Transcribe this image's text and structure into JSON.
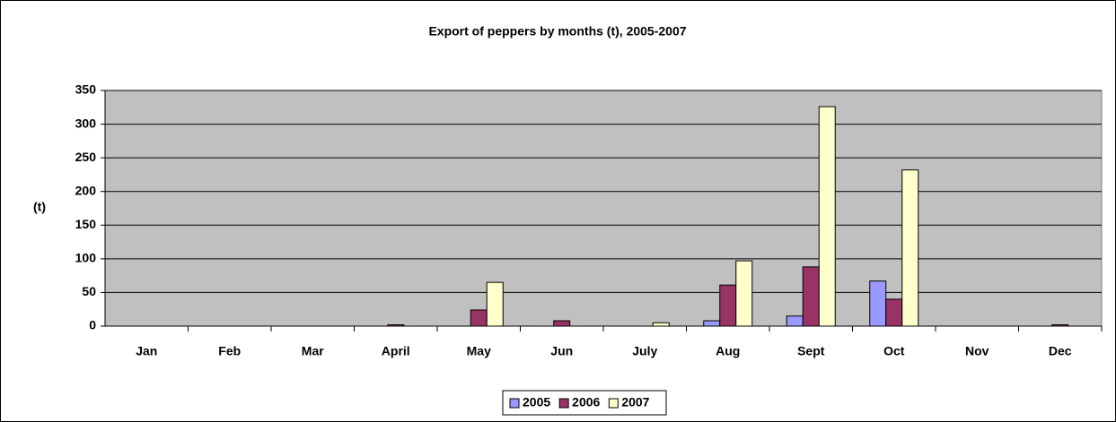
{
  "chart_data": {
    "type": "bar",
    "title": "Export of peppers by months (t), 2005-2007",
    "y_label": "(t)",
    "categories": [
      "Jan",
      "Feb",
      "Mar",
      "April",
      "May",
      "Jun",
      "July",
      "Aug",
      "Sept",
      "Oct",
      "Nov",
      "Dec"
    ],
    "series": [
      {
        "name": "2005",
        "color": "#9999ff",
        "values": [
          0,
          0,
          0,
          0,
          0,
          0,
          0,
          8,
          15,
          67,
          0,
          0
        ]
      },
      {
        "name": "2006",
        "color": "#993366",
        "values": [
          0,
          0,
          0,
          2,
          24,
          8,
          0,
          61,
          88,
          40,
          0,
          2
        ]
      },
      {
        "name": "2007",
        "color": "#ffffcc",
        "values": [
          0,
          0,
          0,
          0,
          65,
          0,
          5,
          97,
          326,
          232,
          0,
          0
        ]
      }
    ],
    "ylim": [
      0,
      350
    ],
    "yticks": [
      0,
      50,
      100,
      150,
      200,
      250,
      300,
      350
    ],
    "grid": true,
    "legend": "bottom",
    "plot_background": "#c0c0c0"
  }
}
